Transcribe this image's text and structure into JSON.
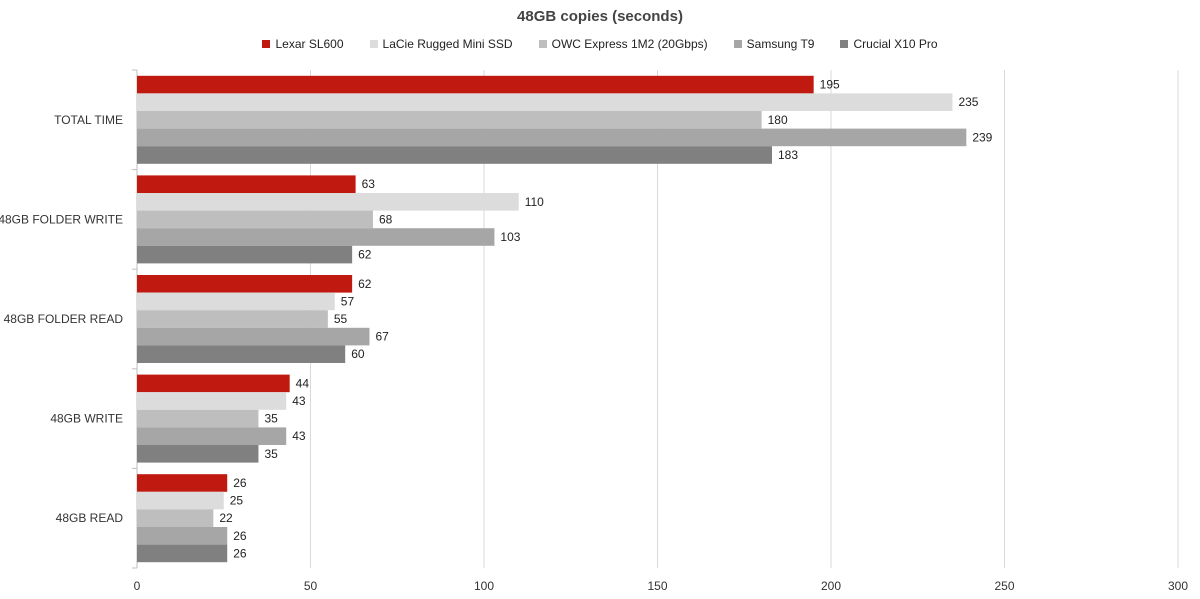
{
  "chart_data": {
    "type": "bar",
    "orientation": "horizontal",
    "title": "48GB copies (seconds)",
    "xlabel": "",
    "ylabel": "",
    "xlim": [
      0,
      300
    ],
    "x_ticks": [
      0,
      50,
      100,
      150,
      200,
      250,
      300
    ],
    "grid": "vertical",
    "legend_position": "top",
    "categories": [
      "TOTAL TIME",
      "48GB FOLDER WRITE",
      "48GB FOLDER READ",
      "48GB WRITE",
      "48GB READ"
    ],
    "series": [
      {
        "name": "Lexar SL600",
        "color": "#c0190f",
        "values": [
          195,
          63,
          62,
          44,
          26
        ]
      },
      {
        "name": "LaCie Rugged Mini SSD",
        "color": "#dcdcdc",
        "values": [
          235,
          110,
          57,
          43,
          25
        ]
      },
      {
        "name": "OWC Express 1M2 (20Gbps)",
        "color": "#bebebe",
        "values": [
          180,
          68,
          55,
          35,
          22
        ]
      },
      {
        "name": "Samsung T9",
        "color": "#a6a6a6",
        "values": [
          239,
          103,
          67,
          43,
          26
        ]
      },
      {
        "name": "Crucial X10 Pro",
        "color": "#808080",
        "values": [
          183,
          62,
          60,
          35,
          26
        ]
      }
    ]
  }
}
